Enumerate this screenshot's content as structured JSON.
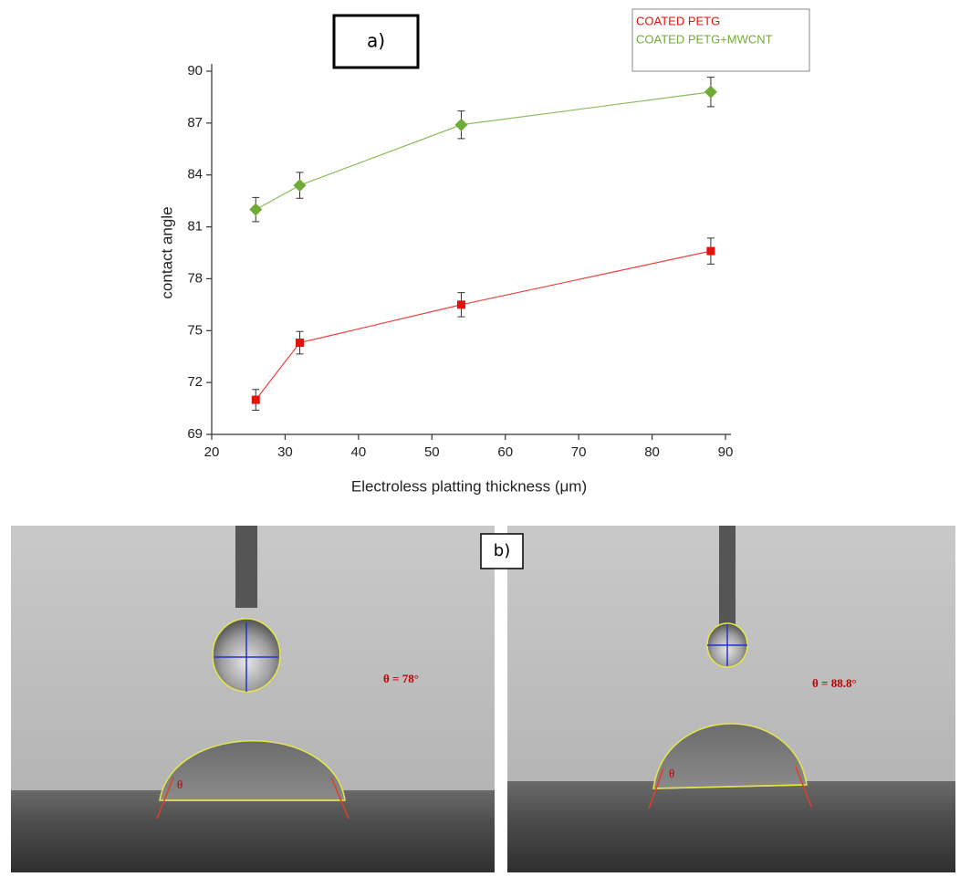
{
  "chart_data": {
    "type": "line",
    "xlabel": "Electroless platting thickness (μm)",
    "ylabel": "contact angle",
    "x": [
      26,
      32,
      54,
      88
    ],
    "series": [
      {
        "name": "COATED PETG",
        "color": "#e3120b",
        "marker": "square",
        "values": [
          71.0,
          74.3,
          76.5,
          79.6
        ],
        "errors": [
          0.6,
          0.65,
          0.7,
          0.75
        ]
      },
      {
        "name": "COATED PETG+MWCNT",
        "color": "#6fab35",
        "marker": "diamond",
        "values": [
          82.0,
          83.4,
          86.9,
          88.8
        ],
        "errors": [
          0.7,
          0.75,
          0.8,
          0.85
        ]
      }
    ],
    "xlim": [
      20,
      90
    ],
    "xticks": [
      20,
      30,
      40,
      50,
      60,
      70,
      80,
      90
    ],
    "ylim": [
      69,
      90
    ],
    "yticks": [
      69,
      72,
      75,
      78,
      81,
      84,
      87,
      90
    ],
    "legend": "top-right",
    "grid": false
  },
  "figure": {
    "panel_a": "a)",
    "panel_b": "b)",
    "images": [
      {
        "angle": "θ = 78°",
        "theta": "θ"
      },
      {
        "angle": "θ = 88.8°",
        "theta": "θ"
      }
    ]
  }
}
